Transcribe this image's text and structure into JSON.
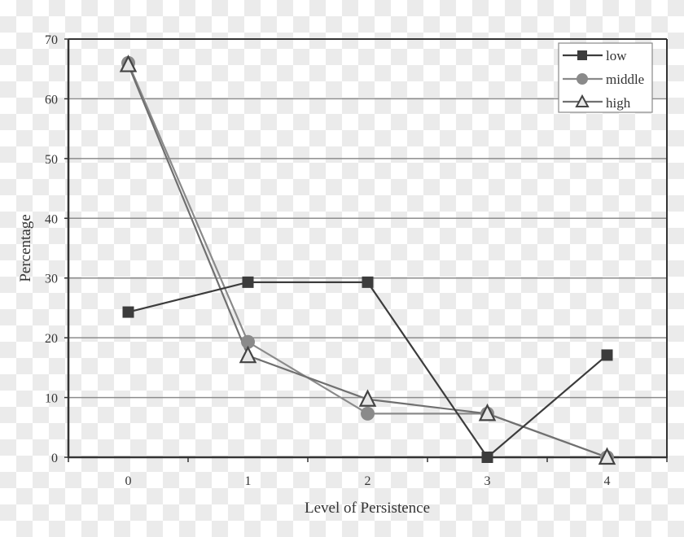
{
  "chart_data": {
    "type": "line",
    "title": "",
    "xlabel": "Level of Persistence",
    "ylabel": "Percentage",
    "categories": [
      "0",
      "1",
      "2",
      "3",
      "4"
    ],
    "ylim": [
      0,
      70
    ],
    "yticks": [
      0,
      10,
      20,
      30,
      40,
      50,
      60,
      70
    ],
    "grid": "horizontal",
    "legend_position": "top-right",
    "series": [
      {
        "name": "low",
        "marker": "square",
        "color": "#3c3c3c",
        "values": [
          24.3,
          29.3,
          29.3,
          0,
          17.1
        ]
      },
      {
        "name": "middle",
        "marker": "circle",
        "color": "#8a8a8a",
        "values": [
          66.0,
          19.3,
          7.3,
          7.3,
          0
        ]
      },
      {
        "name": "high",
        "marker": "triangle",
        "color": "#707070",
        "values": [
          65.7,
          17.0,
          9.7,
          7.3,
          0
        ]
      }
    ]
  },
  "axes": {
    "xlabel": "Level of Persistence",
    "ylabel": "Percentage",
    "xticks": [
      "0",
      "1",
      "2",
      "3",
      "4"
    ],
    "yticks": [
      "0",
      "10",
      "20",
      "30",
      "40",
      "50",
      "60",
      "70"
    ]
  },
  "legend": {
    "items": [
      {
        "label": "low"
      },
      {
        "label": "middle"
      },
      {
        "label": "high"
      }
    ]
  }
}
